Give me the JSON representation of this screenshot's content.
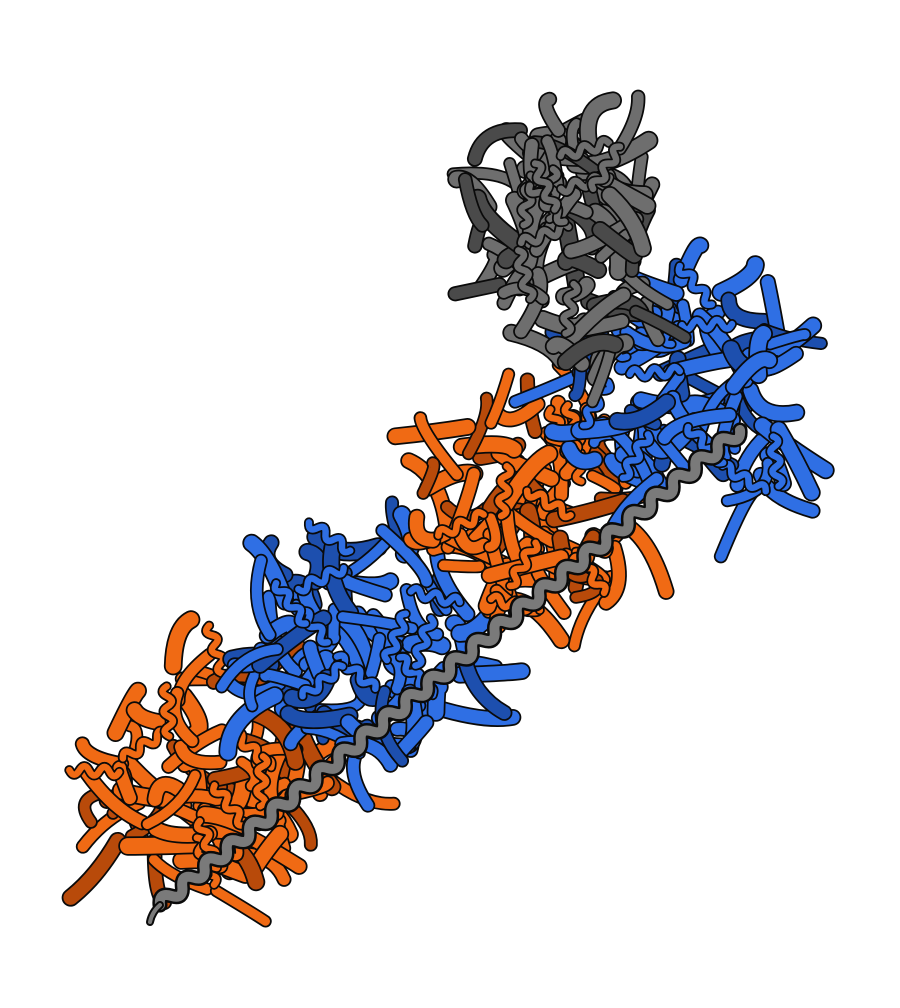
{
  "render": {
    "background": "#ffffff",
    "outline": "#0a0a0a",
    "colors": {
      "orange": "#f06a14",
      "orange_shade": "#b84a0a",
      "blue": "#2f6fe4",
      "blue_shade": "#1d4fae",
      "gray": "#6e6e6e",
      "gray_shade": "#4a4a4a",
      "helix": "#7a7a7a"
    }
  },
  "subunits": [
    {
      "name": "orange-subunit-1",
      "color": "orange"
    },
    {
      "name": "blue-subunit-1",
      "color": "blue"
    },
    {
      "name": "orange-subunit-2",
      "color": "orange"
    },
    {
      "name": "blue-subunit-2",
      "color": "blue"
    },
    {
      "name": "gray-domain",
      "color": "gray"
    }
  ]
}
